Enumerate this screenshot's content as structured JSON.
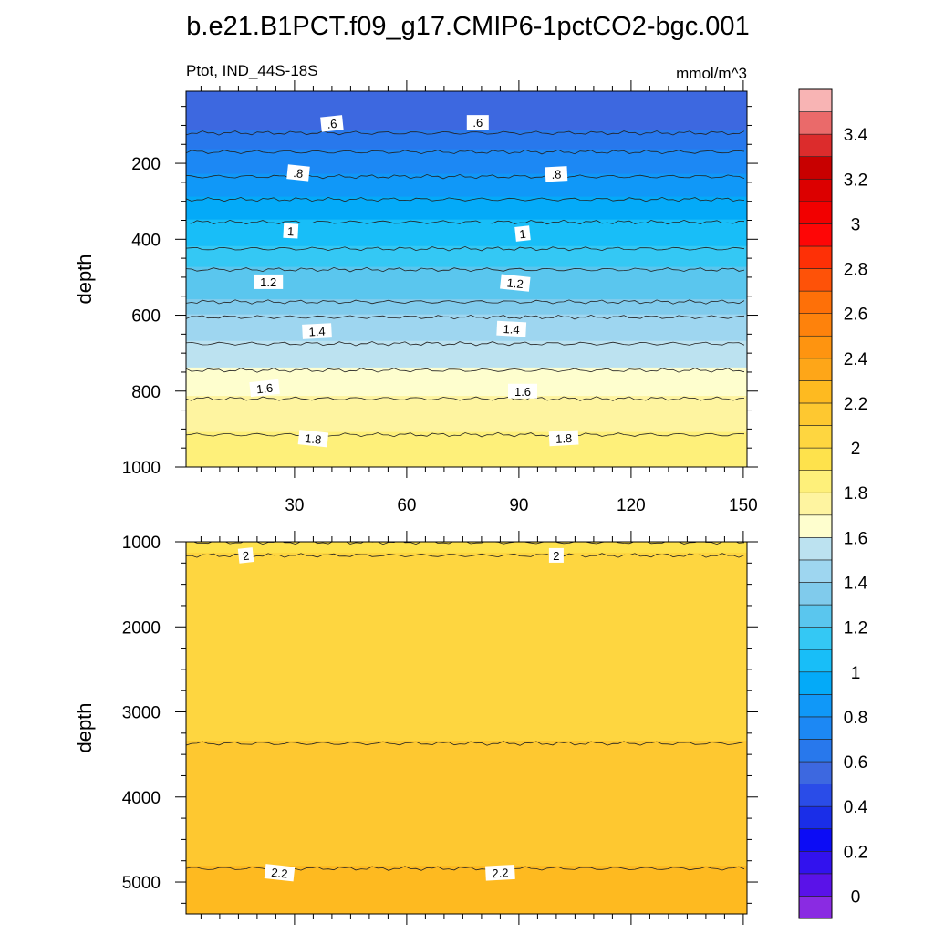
{
  "title": "b.e21.B1PCT.f09_g17.CMIP6-1pctCO2-bgc.001",
  "chart_data": {
    "type": "contour",
    "variable": "Ptot",
    "region": "IND_44S-18S",
    "subtitle_left": "Ptot, IND_44S-18S",
    "units": "mmol/m^3",
    "xlabel": "",
    "ylabel": "depth",
    "xlim": [
      1,
      151
    ],
    "x_ticks": [
      30,
      60,
      90,
      120,
      150
    ],
    "colorbar": {
      "levels": [
        -0.1,
        0,
        0.1,
        0.2,
        0.3,
        0.4,
        0.5,
        0.6,
        0.7,
        0.8,
        0.9,
        1,
        1.1,
        1.2,
        1.3,
        1.4,
        1.5,
        1.6,
        1.7,
        1.8,
        1.9,
        2,
        2.1,
        2.2,
        2.3,
        2.4,
        2.5,
        2.6,
        2.7,
        2.8,
        2.9,
        3,
        3.1,
        3.2,
        3.3,
        3.4,
        3.5,
        3.6
      ],
      "colors": [
        "#8a2be2",
        "#5a12e8",
        "#3212ee",
        "#0c0cf5",
        "#1a2ee8",
        "#2a4ce8",
        "#3d68e0",
        "#2878ec",
        "#1c88f4",
        "#1098f8",
        "#04aaf8",
        "#18bef8",
        "#34c8f4",
        "#5ac6ee",
        "#80cbec",
        "#9ed6f0",
        "#bce2f0",
        "#fefece",
        "#fef4a0",
        "#fef07a",
        "#fee24c",
        "#fed640",
        "#fec830",
        "#feba20",
        "#fea618",
        "#fe9410",
        "#fe820c",
        "#fe7008",
        "#fe5208",
        "#fe3006",
        "#fe0606",
        "#f20000",
        "#dc0000",
        "#c80000",
        "#dc2c2c",
        "#ea6a6a",
        "#f8b4b4"
      ],
      "labels": [
        "0",
        "0.2",
        "0.4",
        "0.6",
        "0.8",
        "1",
        "1.2",
        "1.4",
        "1.6",
        "1.8",
        "2",
        "2.2",
        "2.4",
        "2.6",
        "2.8",
        "3",
        "3.2",
        "3.4"
      ]
    },
    "panels": [
      {
        "name": "upper",
        "ylim": [
          10,
          1000
        ],
        "y_ticks": [
          200,
          400,
          600,
          800,
          1000
        ],
        "x_tick_labels_shown": true,
        "contours": [
          {
            "value": 0.6,
            "depth": 120
          },
          {
            "value": 0.7,
            "depth": 170
          },
          {
            "value": 0.8,
            "depth": 235
          },
          {
            "value": 0.9,
            "depth": 295
          },
          {
            "value": 1.0,
            "depth": 355
          },
          {
            "value": 1.1,
            "depth": 425
          },
          {
            "value": 1.2,
            "depth": 480
          },
          {
            "value": 1.3,
            "depth": 565
          },
          {
            "value": 1.4,
            "depth": 605
          },
          {
            "value": 1.5,
            "depth": 675
          },
          {
            "value": 1.6,
            "depth": 745
          },
          {
            "value": 1.7,
            "depth": 820
          },
          {
            "value": 1.8,
            "depth": 915
          }
        ],
        "contour_labels": [
          {
            "text": ".6",
            "x": 40,
            "depth": 95
          },
          {
            "text": ".6",
            "x": 79,
            "depth": 92
          },
          {
            "text": ".8",
            "x": 31,
            "depth": 225
          },
          {
            "text": ".8",
            "x": 100,
            "depth": 228
          },
          {
            "text": "1",
            "x": 29,
            "depth": 378
          },
          {
            "text": "1",
            "x": 91,
            "depth": 385
          },
          {
            "text": "1.2",
            "x": 23,
            "depth": 512
          },
          {
            "text": "1.2",
            "x": 89,
            "depth": 515
          },
          {
            "text": "1.4",
            "x": 36,
            "depth": 642
          },
          {
            "text": "1.4",
            "x": 88,
            "depth": 636
          },
          {
            "text": "1.6",
            "x": 22,
            "depth": 792
          },
          {
            "text": "1.6",
            "x": 91,
            "depth": 800
          },
          {
            "text": "1.8",
            "x": 35,
            "depth": 925
          },
          {
            "text": "1.8",
            "x": 102,
            "depth": 924
          }
        ]
      },
      {
        "name": "lower",
        "ylim": [
          1000,
          5375
        ],
        "y_ticks": [
          1000,
          2000,
          3000,
          4000,
          5000
        ],
        "x_tick_labels_shown": false,
        "contours": [
          {
            "value": 1.9,
            "depth": 1005
          },
          {
            "value": 2.0,
            "depth": 1160
          },
          {
            "value": 2.1,
            "depth": 3370
          },
          {
            "value": 2.2,
            "depth": 4840
          }
        ],
        "contour_labels": [
          {
            "text": "2",
            "x": 17,
            "depth": 1160
          },
          {
            "text": "2",
            "x": 100,
            "depth": 1160
          },
          {
            "text": "2.2",
            "x": 26,
            "depth": 4890
          },
          {
            "text": "2.2",
            "x": 85,
            "depth": 4890
          }
        ]
      }
    ]
  }
}
